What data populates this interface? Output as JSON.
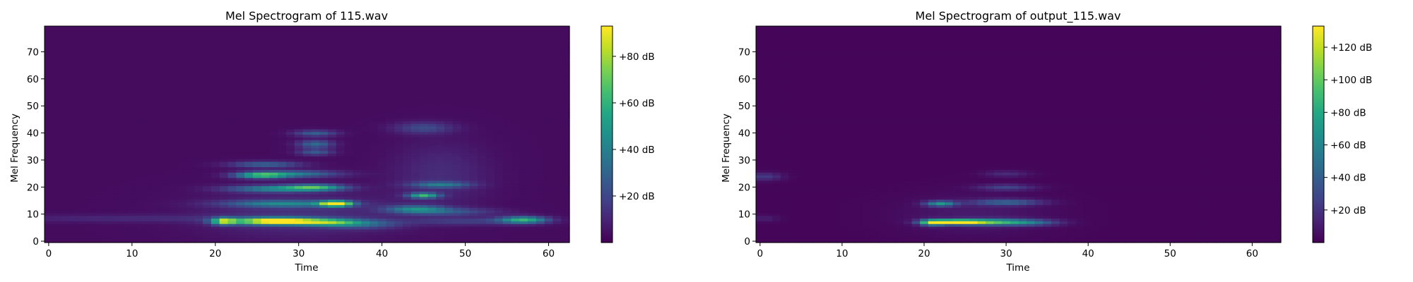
{
  "chart_data": [
    {
      "type": "heatmap",
      "title": "Mel Spectrogram of 115.wav",
      "xlabel": "Time",
      "ylabel": "Mel Frequency",
      "xlim": [
        -0.5,
        62.5
      ],
      "ylim": [
        -0.5,
        79.5
      ],
      "xticks": [
        0,
        10,
        20,
        30,
        40,
        50,
        60
      ],
      "yticks": [
        0,
        10,
        20,
        30,
        40,
        50,
        60,
        70
      ],
      "colormap": "viridis",
      "colorbar": {
        "min": 0,
        "max": 93,
        "ticks": [
          20,
          40,
          60,
          80
        ],
        "tick_labels": [
          "+20 dB",
          "+40 dB",
          "+60 dB",
          "+80 dB"
        ]
      },
      "background_level": 3,
      "blobs": [
        {
          "t": 21,
          "f": 7.5,
          "st": 1.0,
          "sf": 0.9,
          "v": 62
        },
        {
          "t": 29,
          "f": 7.5,
          "st": 3.2,
          "sf": 0.9,
          "v": 70
        },
        {
          "t": 25,
          "f": 7.5,
          "st": 3.0,
          "sf": 0.9,
          "v": 48
        },
        {
          "t": 34,
          "f": 7.0,
          "st": 2.5,
          "sf": 0.9,
          "v": 45
        },
        {
          "t": 38,
          "f": 6.5,
          "st": 3.0,
          "sf": 1.2,
          "v": 22
        },
        {
          "t": 57,
          "f": 8.0,
          "st": 2.0,
          "sf": 0.9,
          "v": 55
        },
        {
          "t": 50,
          "f": 7.5,
          "st": 5.0,
          "sf": 1.0,
          "v": 14
        },
        {
          "t": 34.5,
          "f": 14,
          "st": 1.3,
          "sf": 0.7,
          "v": 93
        },
        {
          "t": 28,
          "f": 14,
          "st": 5.0,
          "sf": 0.9,
          "v": 35
        },
        {
          "t": 27,
          "f": 19.5,
          "st": 4.0,
          "sf": 0.9,
          "v": 38
        },
        {
          "t": 32,
          "f": 20,
          "st": 2.5,
          "sf": 0.8,
          "v": 50
        },
        {
          "t": 25.5,
          "f": 24.5,
          "st": 2.2,
          "sf": 0.8,
          "v": 58
        },
        {
          "t": 30,
          "f": 25,
          "st": 3.5,
          "sf": 0.9,
          "v": 32
        },
        {
          "t": 26,
          "f": 28.5,
          "st": 3.0,
          "sf": 0.8,
          "v": 28
        },
        {
          "t": 32,
          "f": 36,
          "st": 1.5,
          "sf": 1.0,
          "v": 30
        },
        {
          "t": 32,
          "f": 40,
          "st": 1.8,
          "sf": 0.8,
          "v": 26
        },
        {
          "t": 32,
          "f": 33,
          "st": 1.5,
          "sf": 0.8,
          "v": 24
        },
        {
          "t": 45,
          "f": 17,
          "st": 1.3,
          "sf": 0.7,
          "v": 55
        },
        {
          "t": 47,
          "f": 21,
          "st": 2.5,
          "sf": 0.8,
          "v": 30
        },
        {
          "t": 44,
          "f": 12,
          "st": 2.5,
          "sf": 1.0,
          "v": 35
        },
        {
          "t": 48,
          "f": 11,
          "st": 4.0,
          "sf": 1.0,
          "v": 20
        },
        {
          "t": 45,
          "f": 42,
          "st": 2.5,
          "sf": 1.5,
          "v": 18
        },
        {
          "t": 30,
          "f": 10,
          "st": 8.0,
          "sf": 6.0,
          "v": 10
        },
        {
          "t": 47,
          "f": 25,
          "st": 4.0,
          "sf": 8.0,
          "v": 9
        },
        {
          "t": 10,
          "f": 8.5,
          "st": 12.0,
          "sf": 1.0,
          "v": 8
        }
      ]
    },
    {
      "type": "heatmap",
      "title": "Mel Spectrogram of output_115.wav",
      "xlabel": "Time",
      "ylabel": "Mel Frequency",
      "xlim": [
        -0.5,
        63.5
      ],
      "ylim": [
        -0.5,
        79.5
      ],
      "xticks": [
        0,
        10,
        20,
        30,
        40,
        50,
        60
      ],
      "yticks": [
        0,
        10,
        20,
        30,
        40,
        50,
        60,
        70
      ],
      "colormap": "viridis",
      "colorbar": {
        "min": 0,
        "max": 133,
        "ticks": [
          20,
          40,
          60,
          80,
          100,
          120
        ],
        "tick_labels": [
          "+20 dB",
          "+40 dB",
          "+60 dB",
          "+80 dB",
          "+100 dB",
          "+120 dB"
        ]
      },
      "background_level": 2,
      "blobs": [
        {
          "t": 23.5,
          "f": 7.2,
          "st": 2.2,
          "sf": 0.6,
          "v": 133
        },
        {
          "t": 21,
          "f": 7.0,
          "st": 1.0,
          "sf": 0.8,
          "v": 70
        },
        {
          "t": 28,
          "f": 7.2,
          "st": 3.0,
          "sf": 0.8,
          "v": 80
        },
        {
          "t": 33,
          "f": 7.0,
          "st": 2.5,
          "sf": 0.8,
          "v": 38
        },
        {
          "t": 22,
          "f": 14,
          "st": 1.3,
          "sf": 0.7,
          "v": 65
        },
        {
          "t": 30,
          "f": 14.5,
          "st": 3.0,
          "sf": 0.8,
          "v": 40
        },
        {
          "t": 30,
          "f": 20,
          "st": 2.5,
          "sf": 0.8,
          "v": 25
        },
        {
          "t": 30,
          "f": 25,
          "st": 2.0,
          "sf": 0.8,
          "v": 15
        },
        {
          "t": 0.5,
          "f": 24,
          "st": 1.5,
          "sf": 1.0,
          "v": 22
        },
        {
          "t": 0.5,
          "f": 8.5,
          "st": 1.2,
          "sf": 0.8,
          "v": 10
        },
        {
          "t": 26,
          "f": 10,
          "st": 6.0,
          "sf": 5.0,
          "v": 8
        }
      ]
    }
  ]
}
